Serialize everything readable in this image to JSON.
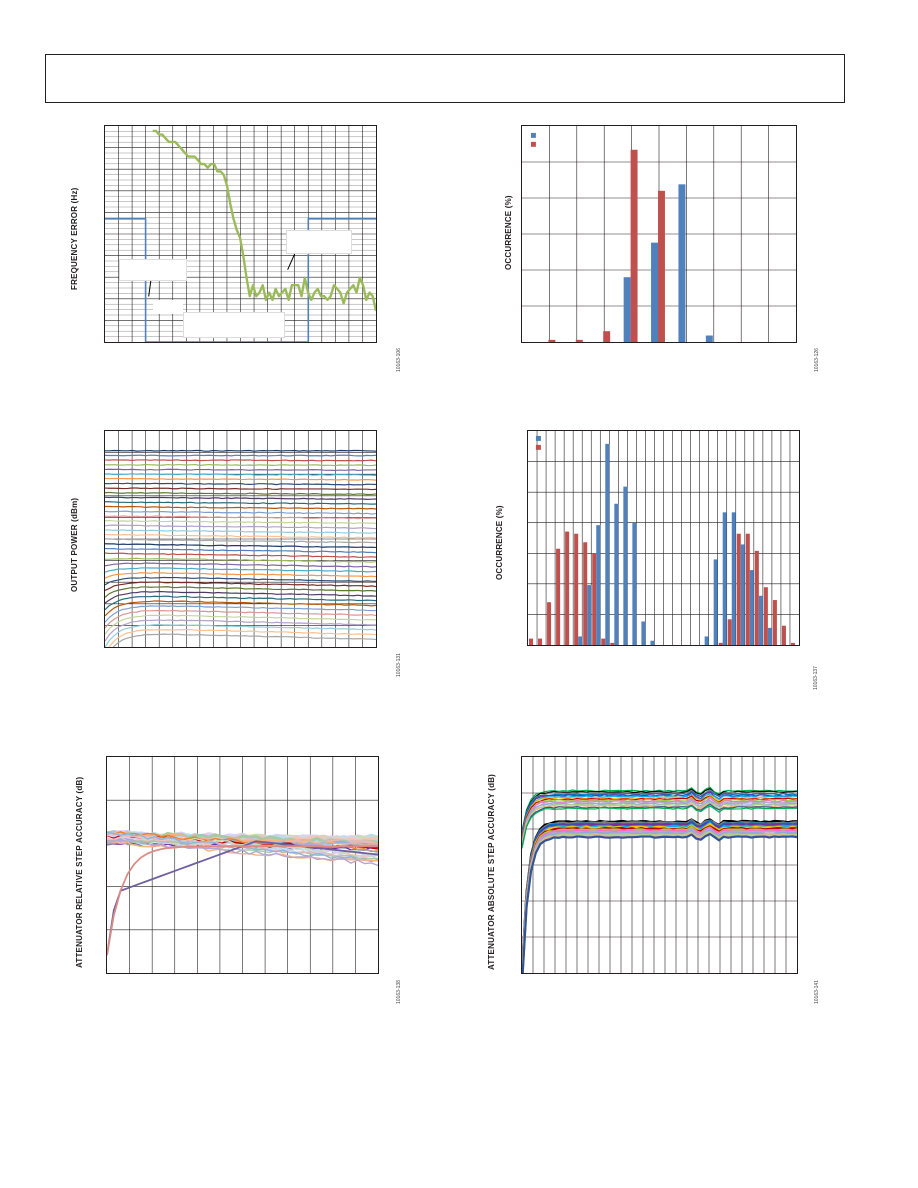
{
  "page": {
    "header_box": ""
  },
  "charts": {
    "freq_error": {
      "ylabel": "FREQUENCY ERROR (Hz)",
      "fig_id": "10163-106",
      "ann1": "",
      "ann2": "",
      "ann3": "",
      "ann4": ""
    },
    "occurrence_top": {
      "ylabel": "OCCURRENCE (%)",
      "fig_id": "10163-126",
      "legend_colors": [
        "#4f81bd",
        "#c0504d"
      ]
    },
    "output_power": {
      "ylabel": "OUTPUT POWER (dBm)",
      "fig_id": "10163-131",
      "colors": [
        "#1f3864",
        "#4f81bd",
        "#c0504d",
        "#9bbb59",
        "#8064a2",
        "#4bacc6",
        "#f79646",
        "#2c4d75",
        "#772c2a",
        "#5f7530",
        "#4d3b62",
        "#276a7c",
        "#b65708",
        "#7f9fcf",
        "#d99694",
        "#c3d69b",
        "#b3a2c7",
        "#93cddd",
        "#fac090",
        "#a6a6a6"
      ]
    },
    "occurrence_mid": {
      "ylabel": "OCCURRENCE (%)",
      "fig_id": "10163-137",
      "legend_colors": [
        "#4f81bd",
        "#c0504d"
      ]
    },
    "relative_step": {
      "ylabel": "ATTENUATOR RELATIVE STEP ACCURACY (dB)",
      "fig_id": "10163-138",
      "highlight_colors": [
        "#6f5fa0",
        "#d98c85"
      ]
    },
    "absolute_step": {
      "ylabel": "ATTENUATOR ABSOLUTE STEP ACCURACY (dB)",
      "fig_id": "10163-141"
    }
  },
  "chart_data": [
    {
      "type": "line",
      "id": "freq_error",
      "series": [
        {
          "color": "#9bbb59",
          "values": [
            0,
            0,
            1,
            1,
            2,
            3,
            3,
            3,
            4,
            5,
            6,
            7,
            7,
            7,
            8,
            9,
            9,
            10,
            9,
            9,
            11,
            11,
            12,
            15,
            20,
            24,
            27,
            29,
            34,
            40,
            45,
            42,
            45,
            44,
            42,
            46,
            44,
            46,
            43,
            45,
            44,
            43,
            46,
            42,
            42,
            42,
            45,
            40,
            44,
            46,
            44,
            43,
            45,
            45,
            46,
            45,
            42,
            43,
            44,
            47,
            44,
            43,
            42,
            44,
            40,
            42,
            46,
            44,
            45,
            49
          ]
        },
        {
          "color": "#4f81bd",
          "shape": "step",
          "points": [
            [
              0,
              40
            ],
            [
              0.15,
              40
            ],
            [
              0.15,
              100
            ],
            [
              0.75,
              100
            ],
            [
              0.75,
              40
            ],
            [
              1,
              40
            ]
          ]
        }
      ]
    },
    {
      "type": "bar",
      "id": "occurrence_top",
      "categories": [
        "1",
        "2",
        "3",
        "4",
        "5",
        "6",
        "7",
        "8",
        "9",
        "10"
      ],
      "series": [
        {
          "values": [
            0,
            0,
            0,
            30,
            46,
            73,
            3,
            0,
            0,
            0
          ]
        },
        {
          "values": [
            1,
            1,
            5,
            89,
            70,
            0,
            0,
            0,
            0,
            0
          ]
        }
      ],
      "ylim": [
        0,
        100
      ]
    },
    {
      "type": "line",
      "id": "output_power",
      "trace_count": 40
    },
    {
      "type": "bar",
      "id": "occurrence_mid",
      "series": [
        {
          "values": [
            0,
            0,
            0,
            0,
            0,
            4,
            28,
            56,
            94,
            66,
            74,
            57,
            11,
            2,
            0,
            0,
            0,
            0,
            0,
            4,
            40,
            62,
            62,
            47,
            35,
            23,
            8,
            0,
            0,
            0
          ]
        },
        {
          "values": [
            3,
            3,
            20,
            45,
            53,
            52,
            48,
            43,
            3,
            1,
            0,
            0,
            0,
            0,
            0,
            0,
            0,
            0,
            0,
            0,
            0,
            1,
            12,
            52,
            52,
            44,
            27,
            21,
            9,
            1
          ]
        }
      ],
      "ylim": [
        0,
        100
      ]
    },
    {
      "type": "line",
      "id": "relative_step",
      "trace_count": 24
    },
    {
      "type": "line",
      "id": "absolute_step",
      "trace_count": 30
    }
  ]
}
